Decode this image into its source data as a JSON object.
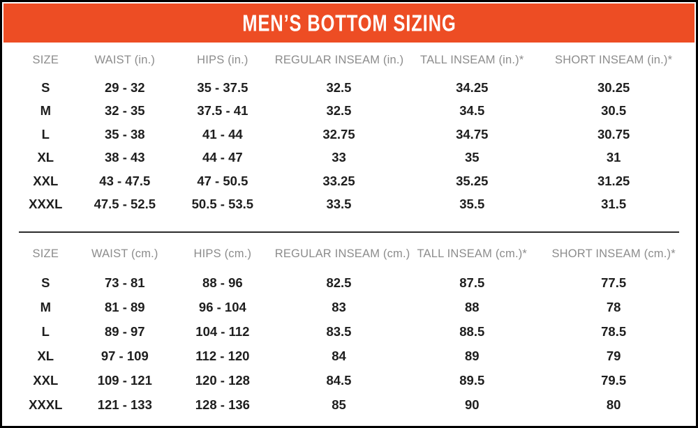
{
  "title": "MEN’S BOTTOM SIZING",
  "colors": {
    "banner": "#ED4D24",
    "title_text": "#FFFFFF",
    "header_text": "#8C8C8C",
    "cell_text": "#1E1E1E",
    "frame_border": "#000000",
    "divider": "#2B2B2B"
  },
  "chart_data": [
    {
      "type": "table",
      "title": "Men's bottom sizing (inches)",
      "columns": [
        "SIZE",
        "WAIST (in.)",
        "HIPS (in.)",
        "REGULAR INSEAM (in.)",
        "TALL INSEAM (in.)*",
        "SHORT INSEAM (in.)*"
      ],
      "rows": [
        [
          "S",
          "29 - 32",
          "35 - 37.5",
          "32.5",
          "34.25",
          "30.25"
        ],
        [
          "M",
          "32 - 35",
          "37.5 - 41",
          "32.5",
          "34.5",
          "30.5"
        ],
        [
          "L",
          "35 - 38",
          "41 - 44",
          "32.75",
          "34.75",
          "30.75"
        ],
        [
          "XL",
          "38 - 43",
          "44 - 47",
          "33",
          "35",
          "31"
        ],
        [
          "XXL",
          "43 - 47.5",
          "47 - 50.5",
          "33.25",
          "35.25",
          "31.25"
        ],
        [
          "XXXL",
          "47.5 - 52.5",
          "50.5 - 53.5",
          "33.5",
          "35.5",
          "31.5"
        ]
      ]
    },
    {
      "type": "table",
      "title": "Men's bottom sizing (centimeters)",
      "columns": [
        "SIZE",
        "WAIST (cm.)",
        "HIPS (cm.)",
        "REGULAR INSEAM (cm.)",
        "TALL INSEAM (cm.)*",
        "SHORT INSEAM (cm.)*"
      ],
      "rows": [
        [
          "S",
          "73 - 81",
          "88 - 96",
          "82.5",
          "87.5",
          "77.5"
        ],
        [
          "M",
          "81 - 89",
          "96 - 104",
          "83",
          "88",
          "78"
        ],
        [
          "L",
          "89 - 97",
          "104 - 112",
          "83.5",
          "88.5",
          "78.5"
        ],
        [
          "XL",
          "97 - 109",
          "112 - 120",
          "84",
          "89",
          "79"
        ],
        [
          "XXL",
          "109 - 121",
          "120 - 128",
          "84.5",
          "89.5",
          "79.5"
        ],
        [
          "XXXL",
          "121 - 133",
          "128 - 136",
          "85",
          "90",
          "80"
        ]
      ]
    }
  ]
}
